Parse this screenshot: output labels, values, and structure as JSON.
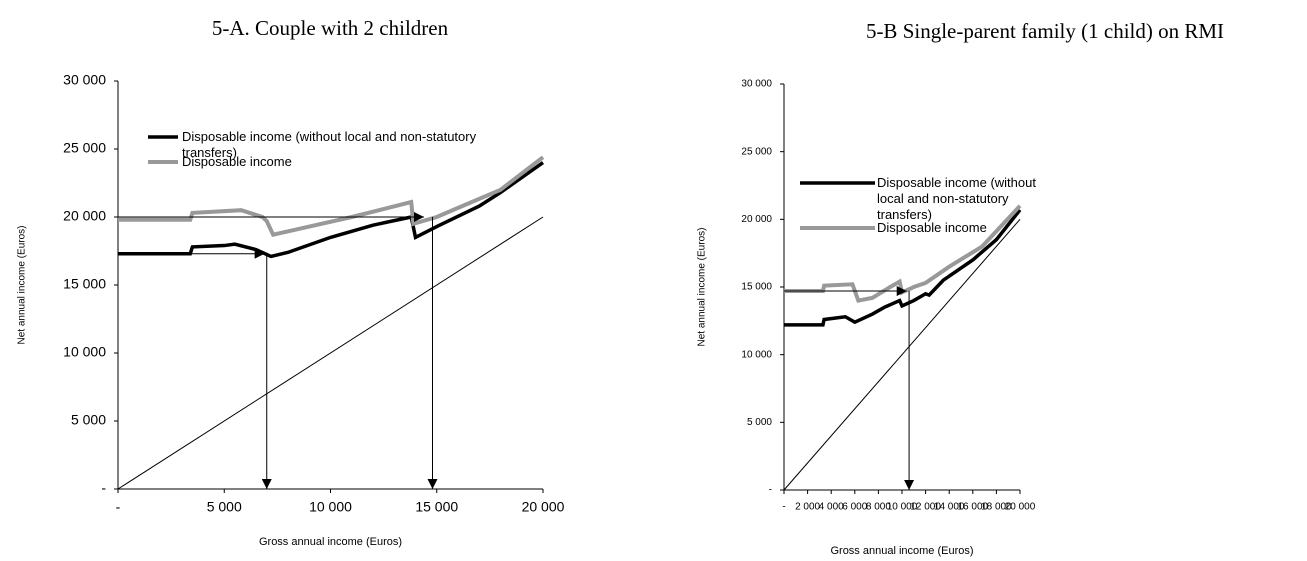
{
  "chart_data": [
    {
      "type": "line",
      "title": "5-A. Couple with 2 children",
      "xlabel": "Gross annual income (Euros)",
      "ylabel": "Net annual income (Euros)",
      "xlim": [
        0,
        20000
      ],
      "ylim": [
        0,
        30000
      ],
      "xticks": [
        {
          "value": 0,
          "label": "-"
        },
        {
          "value": 5000,
          "label": "5 000"
        },
        {
          "value": 10000,
          "label": "10 000"
        },
        {
          "value": 15000,
          "label": "15 000"
        },
        {
          "value": 20000,
          "label": "20 000"
        }
      ],
      "yticks": [
        {
          "value": 0,
          "label": "-"
        },
        {
          "value": 5000,
          "label": "5 000"
        },
        {
          "value": 10000,
          "label": "10 000"
        },
        {
          "value": 15000,
          "label": "15 000"
        },
        {
          "value": 20000,
          "label": "20 000"
        },
        {
          "value": 25000,
          "label": "25 000"
        },
        {
          "value": 30000,
          "label": "30 000"
        }
      ],
      "series": [
        {
          "name": "Disposable income (without local and non-statutory transfers)",
          "color": "#000000",
          "x": [
            0,
            3400,
            3500,
            5000,
            5500,
            6500,
            7200,
            8000,
            10000,
            12000,
            13800,
            14000,
            15000,
            17000,
            18000,
            20000
          ],
          "values": [
            17300,
            17300,
            17800,
            17900,
            18000,
            17600,
            17100,
            17400,
            18500,
            19400,
            20000,
            18500,
            19300,
            20800,
            21800,
            24000
          ]
        },
        {
          "name": "Disposable income",
          "color": "#999999",
          "x": [
            0,
            3400,
            3500,
            5800,
            6800,
            7000,
            7300,
            9000,
            11000,
            13800,
            13900,
            15000,
            16500,
            18000,
            20000
          ],
          "values": [
            19800,
            19800,
            20300,
            20500,
            20000,
            19700,
            18700,
            19300,
            20000,
            21100,
            19500,
            20000,
            21000,
            22000,
            24400
          ]
        },
        {
          "color": "#000000",
          "x": [
            0,
            20000
          ],
          "values": [
            0,
            20000
          ]
        }
      ],
      "arrows": [
        {
          "x": [
            0,
            6900
          ],
          "y": [
            17300,
            17300
          ]
        },
        {
          "x": [
            7000,
            7000
          ],
          "y": [
            17300,
            0
          ]
        },
        {
          "x": [
            0,
            14400
          ],
          "y": [
            20000,
            20000
          ]
        },
        {
          "x": [
            14800,
            14800
          ],
          "y": [
            20000,
            0
          ]
        }
      ]
    },
    {
      "type": "line",
      "title": "5-B Single-parent family (1 child) on RMI",
      "xlabel": "Gross annual income (Euros)",
      "ylabel": "Net annual income (Euros)",
      "xlim": [
        0,
        20000
      ],
      "ylim": [
        0,
        30000
      ],
      "xticks": [
        {
          "value": 0,
          "label": "-"
        },
        {
          "value": 2000,
          "label": "2 000"
        },
        {
          "value": 4000,
          "label": "4 000"
        },
        {
          "value": 6000,
          "label": "6 000"
        },
        {
          "value": 8000,
          "label": "8 000"
        },
        {
          "value": 10000,
          "label": "10 000"
        },
        {
          "value": 12000,
          "label": "12 000"
        },
        {
          "value": 14000,
          "label": "14 000"
        },
        {
          "value": 16000,
          "label": "16 000"
        },
        {
          "value": 18000,
          "label": "18 000"
        },
        {
          "value": 20000,
          "label": "20 000"
        }
      ],
      "yticks": [
        {
          "value": 0,
          "label": "-"
        },
        {
          "value": 5000,
          "label": "5 000"
        },
        {
          "value": 10000,
          "label": "10 000"
        },
        {
          "value": 15000,
          "label": "15 000"
        },
        {
          "value": 20000,
          "label": "20 000"
        },
        {
          "value": 25000,
          "label": "25 000"
        },
        {
          "value": 30000,
          "label": "30 000"
        }
      ],
      "series": [
        {
          "name": "Disposable income (without local and non-statutory transfers)",
          "color": "#000000",
          "x": [
            0,
            3300,
            3400,
            5200,
            6000,
            7500,
            8500,
            9800,
            10000,
            11000,
            12000,
            12300,
            13500,
            16000,
            18000,
            20000
          ],
          "values": [
            12200,
            12200,
            12600,
            12800,
            12400,
            13000,
            13500,
            14000,
            13600,
            14000,
            14500,
            14400,
            15500,
            17000,
            18500,
            20700
          ]
        },
        {
          "name": "Disposable income",
          "color": "#999999",
          "x": [
            0,
            3300,
            3400,
            5800,
            6300,
            7500,
            9000,
            9800,
            10000,
            11000,
            12000,
            14000,
            16800,
            20000
          ],
          "values": [
            14700,
            14700,
            15100,
            15200,
            14000,
            14200,
            15000,
            15400,
            14600,
            15000,
            15300,
            16500,
            18000,
            21000
          ]
        },
        {
          "color": "#000000",
          "x": [
            0,
            20000
          ],
          "values": [
            0,
            20000
          ]
        }
      ],
      "arrows": [
        {
          "x": [
            0,
            10400
          ],
          "y": [
            14700,
            14700
          ]
        },
        {
          "x": [
            10600,
            10600
          ],
          "y": [
            14700,
            0
          ]
        }
      ]
    }
  ]
}
